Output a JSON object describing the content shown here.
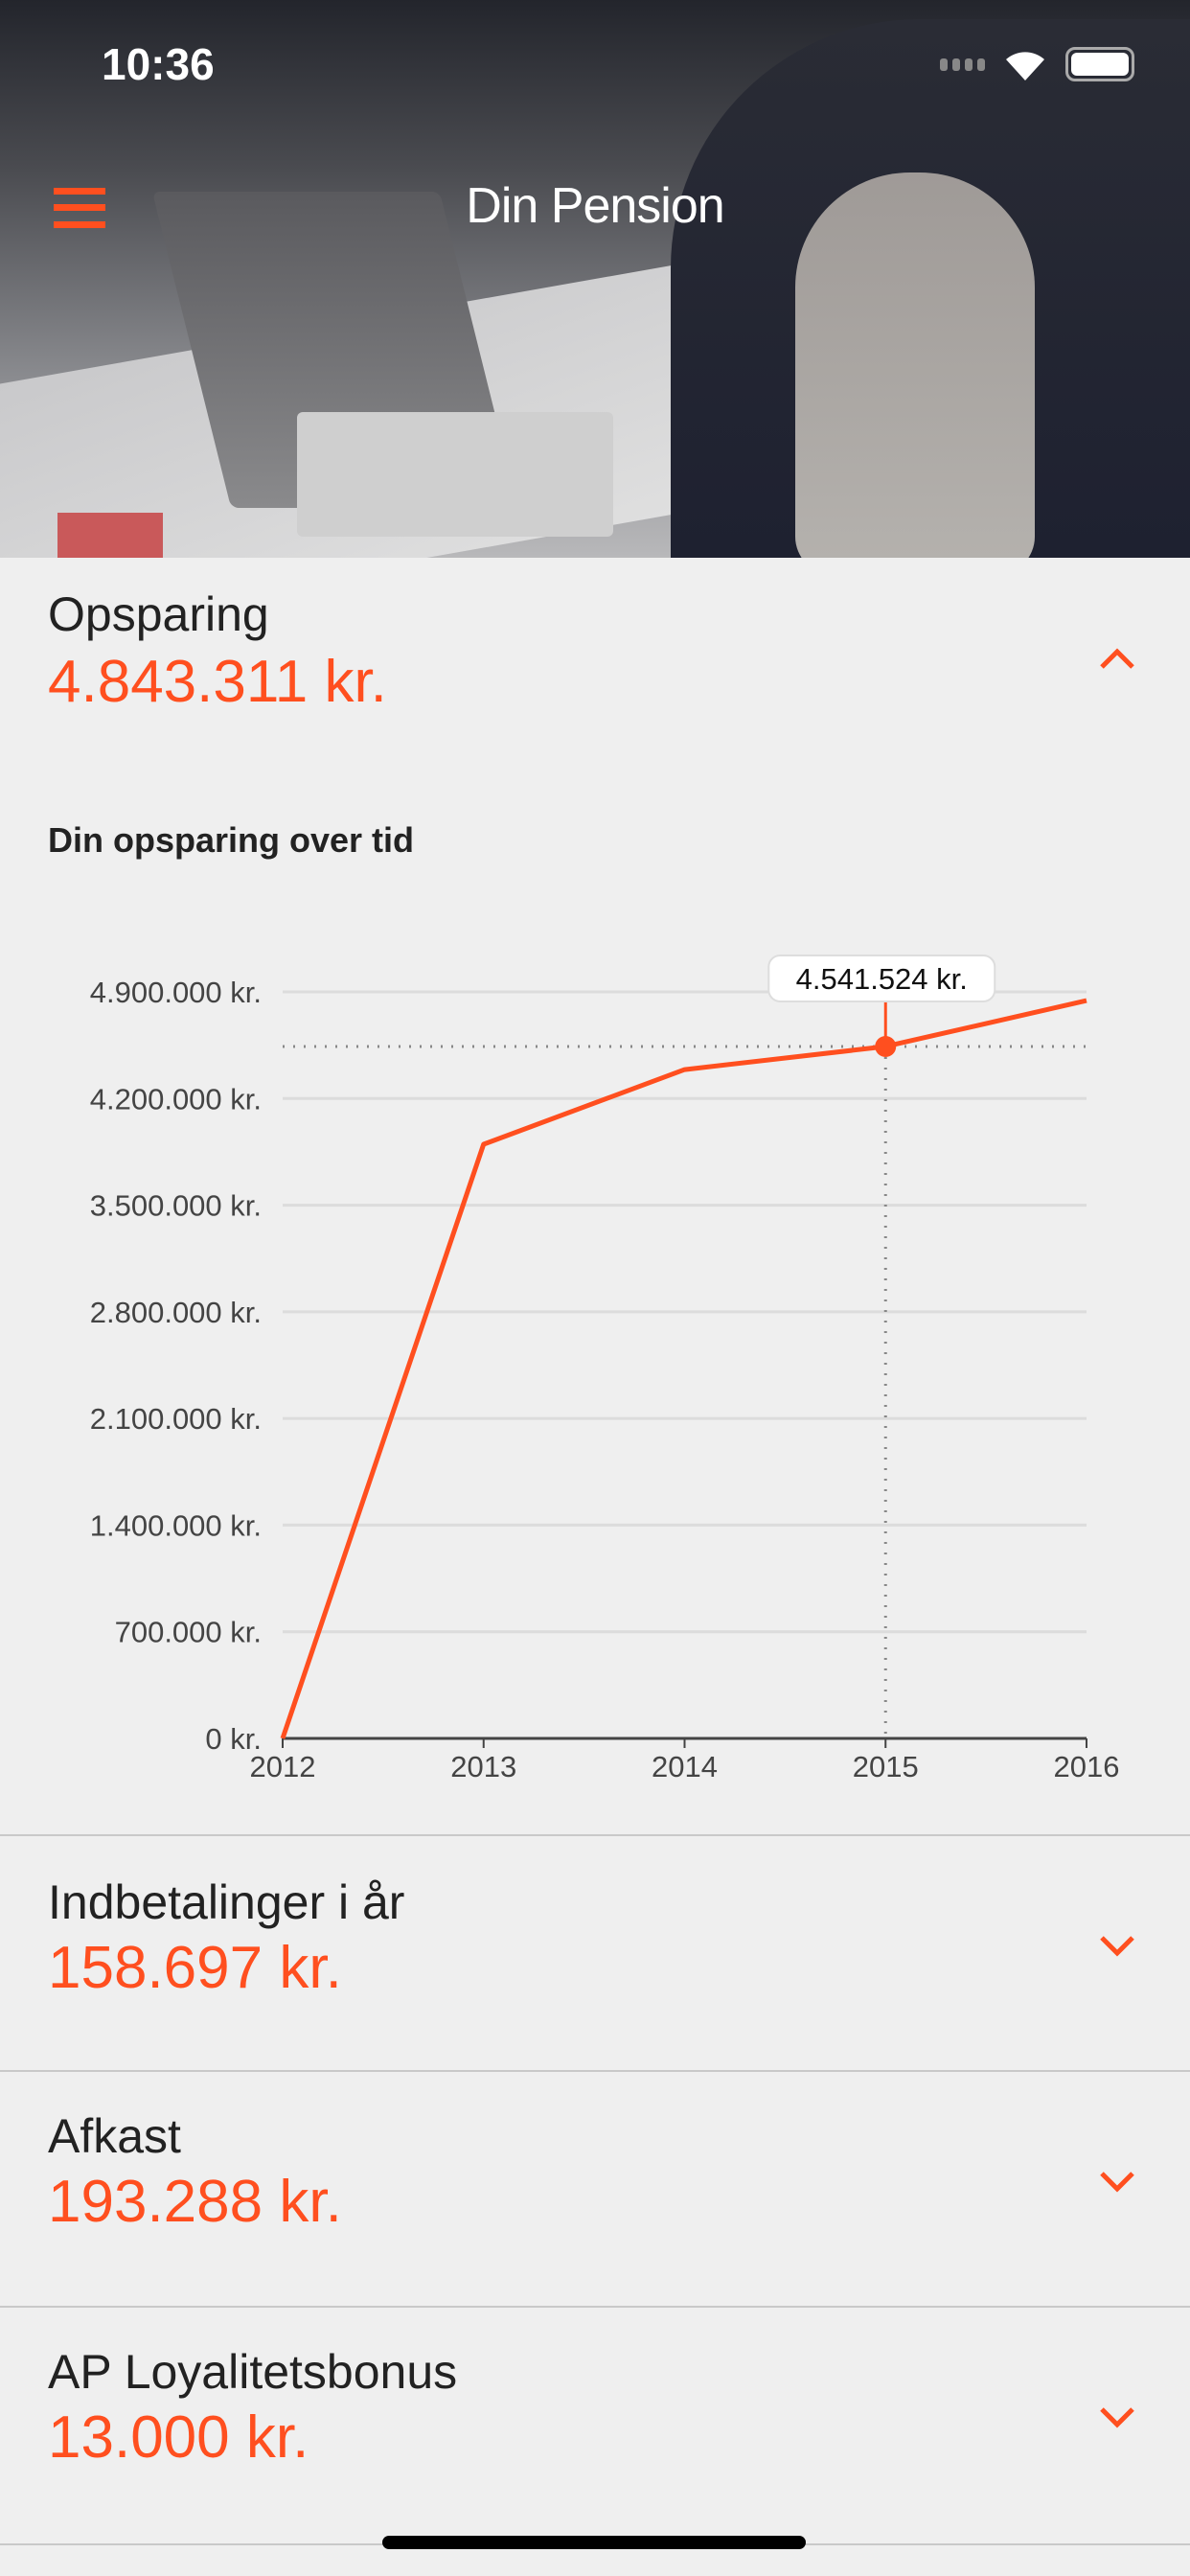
{
  "status_bar": {
    "time": "10:36"
  },
  "header": {
    "title": "Din Pension",
    "menu_icon": "hamburger-icon"
  },
  "sections": [
    {
      "label": "Opsparing",
      "value": "4.843.311 kr.",
      "expanded": true
    },
    {
      "label": "Indbetalinger i år",
      "value": "158.697 kr.",
      "expanded": false
    },
    {
      "label": "Afkast",
      "value": "193.288 kr.",
      "expanded": false
    },
    {
      "label": "AP Loyalitetsbonus",
      "value": "13.000 kr.",
      "expanded": false
    }
  ],
  "colors": {
    "accent": "#ff4f1f",
    "background": "#efefef"
  },
  "chart_data": {
    "type": "line",
    "title": "Din opsparing over tid",
    "x": [
      "2012",
      "2013",
      "2014",
      "2015",
      "2016"
    ],
    "series": [
      {
        "name": "Opsparing",
        "values": [
          0,
          3900000,
          4390000,
          4541524,
          4843311
        ]
      }
    ],
    "ylim": [
      0,
      4900000
    ],
    "yticks": [
      0,
      700000,
      1400000,
      2100000,
      2800000,
      3500000,
      4200000,
      4900000
    ],
    "ytick_labels": [
      "0 kr.",
      "700.000 kr.",
      "1.400.000 kr.",
      "2.100.000 kr.",
      "2.800.000 kr.",
      "3.500.000 kr.",
      "4.200.000 kr.",
      "4.900.000 kr."
    ],
    "grid": true,
    "tooltip": {
      "index": 3,
      "label": "4.541.524 kr."
    }
  }
}
